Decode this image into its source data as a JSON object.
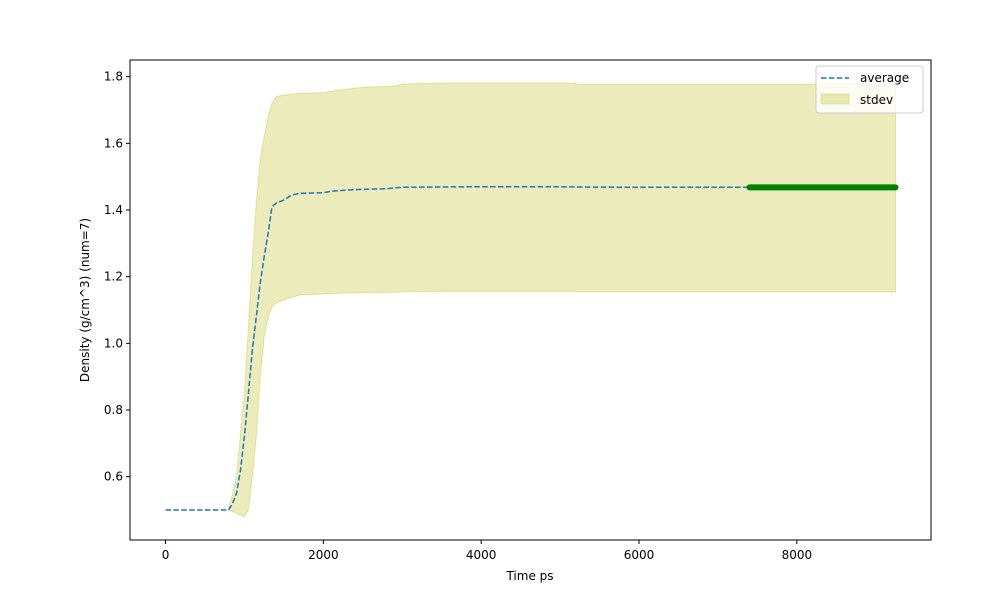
{
  "chart_data": {
    "type": "line",
    "title": "",
    "xlabel": "Time ps",
    "ylabel": "Density (g/cm^3) (num=7)",
    "xlim": [
      -450,
      9700
    ],
    "ylim": [
      0.41,
      1.85
    ],
    "xticks": [
      0,
      2000,
      4000,
      6000,
      8000
    ],
    "xtick_labels": [
      "0",
      "2000",
      "4000",
      "6000",
      "8000"
    ],
    "yticks": [
      0.6,
      0.8,
      1.0,
      1.2,
      1.4,
      1.6,
      1.8
    ],
    "ytick_labels": [
      "0.6",
      "0.8",
      "1.0",
      "1.2",
      "1.4",
      "1.6",
      "1.8"
    ],
    "grid": false,
    "legend_position": "top-right",
    "series": [
      {
        "name": "average",
        "style": "dashed",
        "color": "#1f77b4",
        "x": [
          0,
          800,
          850,
          900,
          950,
          1000,
          1050,
          1100,
          1150,
          1200,
          1250,
          1300,
          1350,
          1400,
          1500,
          1600,
          1700,
          2000,
          2100,
          2300,
          2500,
          2800,
          2900,
          3000,
          3500,
          4000,
          4500,
          5000,
          5200,
          6000,
          7000,
          7400,
          8000,
          9000,
          9250
        ],
        "y": [
          0.5,
          0.5,
          0.52,
          0.55,
          0.62,
          0.72,
          0.85,
          0.98,
          1.08,
          1.18,
          1.26,
          1.33,
          1.41,
          1.42,
          1.43,
          1.445,
          1.45,
          1.452,
          1.456,
          1.46,
          1.462,
          1.464,
          1.466,
          1.468,
          1.469,
          1.47,
          1.47,
          1.47,
          1.469,
          1.468,
          1.468,
          1.468,
          1.468,
          1.468,
          1.468
        ]
      }
    ],
    "band": {
      "name": "stdev",
      "color": "#bcbd22",
      "opacity": 0.3,
      "x": [
        800,
        900,
        1000,
        1050,
        1100,
        1150,
        1200,
        1250,
        1300,
        1350,
        1400,
        1500,
        1700,
        2000,
        2200,
        2500,
        2900,
        3000,
        3500,
        4000,
        4500,
        5200,
        5200,
        9250
      ],
      "upper": [
        0.5,
        0.6,
        0.85,
        1.05,
        1.25,
        1.42,
        1.55,
        1.62,
        1.68,
        1.72,
        1.74,
        1.745,
        1.75,
        1.752,
        1.76,
        1.768,
        1.772,
        1.778,
        1.781,
        1.781,
        1.781,
        1.781,
        1.777,
        1.777
      ],
      "lower": [
        0.5,
        0.49,
        0.48,
        0.5,
        0.6,
        0.72,
        0.9,
        1.02,
        1.08,
        1.11,
        1.12,
        1.13,
        1.145,
        1.148,
        1.15,
        1.152,
        1.153,
        1.155,
        1.156,
        1.156,
        1.156,
        1.156,
        1.154,
        1.154
      ]
    },
    "highlight": {
      "color": "#008000",
      "x_start": 7400,
      "x_end": 9250,
      "y": 1.468
    },
    "legend": [
      {
        "label": "average",
        "kind": "dashed-line",
        "color": "#1f77b4"
      },
      {
        "label": "stdev",
        "kind": "patch",
        "color": "#bcbd22"
      }
    ]
  }
}
